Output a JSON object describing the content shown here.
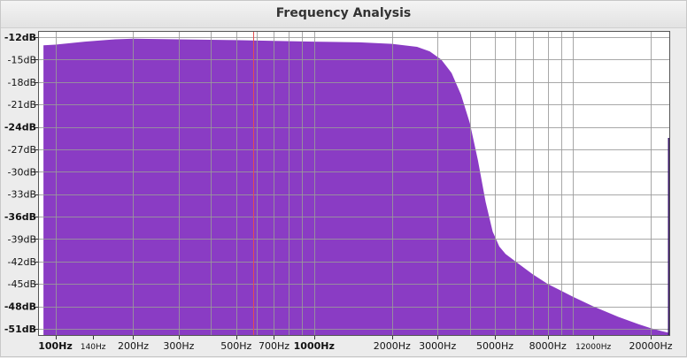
{
  "window": {
    "title": "Frequency Analysis"
  },
  "colors": {
    "spectrum_fill": "#8a3cc4",
    "grid": "#9a9a9a",
    "cursor": "#e05050",
    "plot_bg": "#ffffff",
    "window_bg": "#ececec"
  },
  "chart_data": {
    "type": "area",
    "title": "Frequency Analysis",
    "xlabel": "",
    "ylabel": "",
    "xscale": "log",
    "xlim": [
      90,
      25000
    ],
    "ylim": [
      -51,
      -12
    ],
    "grid": true,
    "y_ticks": [
      {
        "label": "-12dB",
        "value": -12,
        "bold": true
      },
      {
        "label": "-15dB",
        "value": -15,
        "bold": false
      },
      {
        "label": "-18dB",
        "value": -18,
        "bold": false
      },
      {
        "label": "-21dB",
        "value": -21,
        "bold": false
      },
      {
        "label": "-24dB",
        "value": -24,
        "bold": true
      },
      {
        "label": "-27dB",
        "value": -27,
        "bold": false
      },
      {
        "label": "-30dB",
        "value": -30,
        "bold": false
      },
      {
        "label": "-33dB",
        "value": -33,
        "bold": false
      },
      {
        "label": "-36dB",
        "value": -36,
        "bold": true
      },
      {
        "label": "-39dB",
        "value": -39,
        "bold": false
      },
      {
        "label": "-42dB",
        "value": -42,
        "bold": false
      },
      {
        "label": "-45dB",
        "value": -45,
        "bold": false
      },
      {
        "label": "-48dB",
        "value": -48,
        "bold": true
      },
      {
        "label": "-51dB",
        "value": -51,
        "bold": true
      }
    ],
    "x_ticks": [
      {
        "label": "100Hz",
        "value": 100,
        "style": "bold"
      },
      {
        "label": "140Hz",
        "value": 140,
        "style": "small"
      },
      {
        "label": "200Hz",
        "value": 200,
        "style": "normal"
      },
      {
        "label": "300Hz",
        "value": 300,
        "style": "normal"
      },
      {
        "label": "500Hz",
        "value": 500,
        "style": "normal"
      },
      {
        "label": "700Hz",
        "value": 700,
        "style": "normal"
      },
      {
        "label": "1000Hz",
        "value": 1000,
        "style": "bold"
      },
      {
        "label": "2000Hz",
        "value": 2000,
        "style": "normal"
      },
      {
        "label": "3000Hz",
        "value": 3000,
        "style": "normal"
      },
      {
        "label": "5000Hz",
        "value": 5000,
        "style": "normal"
      },
      {
        "label": "8000Hz",
        "value": 8000,
        "style": "normal"
      },
      {
        "label": "12000Hz",
        "value": 12000,
        "style": "small"
      },
      {
        "label": "20000Hz",
        "value": 20000,
        "style": "normal"
      }
    ],
    "grid_frequencies": [
      100,
      200,
      300,
      400,
      500,
      600,
      700,
      800,
      900,
      1000,
      2000,
      3000,
      4000,
      5000,
      6000,
      7000,
      8000,
      9000,
      10000,
      20000
    ],
    "cursor_frequency": 580,
    "series": [
      {
        "x": [
          90,
          100,
          130,
          170,
          200,
          300,
          500,
          700,
          1000,
          1500,
          2000,
          2500,
          2800,
          3100,
          3400,
          3700,
          4000,
          4300,
          4600,
          4900,
          5200,
          5500,
          6000,
          7000,
          8000,
          10000,
          12000,
          15000,
          18000,
          20000,
          22000,
          24000
        ],
        "y": [
          -13.1,
          -13.0,
          -12.6,
          -12.3,
          -12.2,
          -12.3,
          -12.4,
          -12.5,
          -12.6,
          -12.7,
          -12.9,
          -13.3,
          -13.9,
          -15.0,
          -16.8,
          -19.7,
          -23.5,
          -28.5,
          -34.0,
          -38.0,
          -40.0,
          -41.0,
          -42.0,
          -43.7,
          -45.0,
          -46.7,
          -48.0,
          -49.4,
          -50.4,
          -50.9,
          -51.3,
          -51.6
        ]
      }
    ]
  }
}
